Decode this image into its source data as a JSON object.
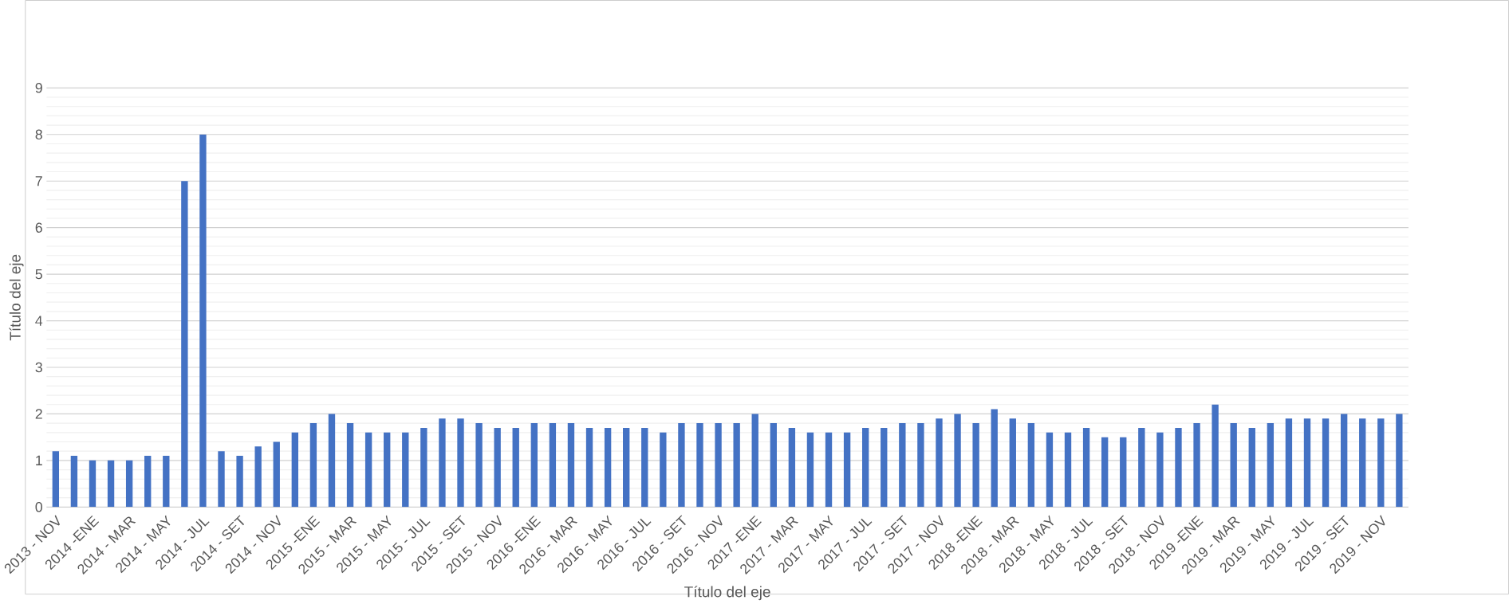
{
  "chart_data": {
    "type": "bar",
    "xlabel": "Título del eje",
    "ylabel": "Título del eje",
    "categories": [
      "2013 - NOV",
      null,
      "2014 -ENE",
      null,
      "2014 - MAR",
      null,
      "2014 - MAY",
      null,
      "2014 - JUL",
      null,
      "2014 - SET",
      null,
      "2014 - NOV",
      null,
      "2015 -ENE",
      null,
      "2015 - MAR",
      null,
      "2015 - MAY",
      null,
      "2015 - JUL",
      null,
      "2015 - SET",
      null,
      "2015 - NOV",
      null,
      "2016 -ENE",
      null,
      "2016 - MAR",
      null,
      "2016 - MAY",
      null,
      "2016 - JUL",
      null,
      "2016 - SET",
      null,
      "2016 - NOV",
      null,
      "2017 -ENE",
      null,
      "2017 - MAR",
      null,
      "2017 - MAY",
      null,
      "2017 - JUL",
      null,
      "2017 - SET",
      null,
      "2017 - NOV",
      null,
      "2018 -ENE",
      null,
      "2018 - MAR",
      null,
      "2018 - MAY",
      null,
      "2018 - JUL",
      null,
      "2018 - SET",
      null,
      "2018 - NOV",
      null,
      "2019 -ENE",
      null,
      "2019 - MAR",
      null,
      "2019 - MAY",
      null,
      "2019 - JUL",
      null,
      "2019 - SET",
      null,
      "2019 - NOV",
      null
    ],
    "values": [
      1.2,
      1.1,
      1.0,
      1.0,
      1.0,
      1.1,
      1.1,
      7,
      8,
      1.2,
      1.1,
      1.3,
      1.4,
      1.6,
      1.8,
      2.0,
      1.8,
      1.6,
      1.6,
      1.6,
      1.7,
      1.9,
      1.9,
      1.8,
      1.7,
      1.7,
      1.8,
      1.8,
      1.8,
      1.7,
      1.7,
      1.7,
      1.7,
      1.6,
      1.8,
      1.8,
      1.8,
      1.8,
      2.0,
      1.8,
      1.7,
      1.6,
      1.6,
      1.6,
      1.7,
      1.7,
      1.8,
      1.8,
      1.9,
      2.0,
      1.8,
      2.1,
      1.9,
      1.8,
      1.6,
      1.6,
      1.7,
      1.5,
      1.5,
      1.7,
      1.6,
      1.7,
      1.8,
      2.2,
      1.8,
      1.7,
      1.8,
      1.9,
      1.9,
      1.9,
      2.0,
      1.9,
      1.9,
      2.0
    ],
    "color": "#4472c4",
    "ylim": [
      0,
      9
    ],
    "yticks": [
      0,
      1,
      2,
      3,
      4,
      5,
      6,
      7,
      8,
      9
    ],
    "grid": "y"
  }
}
